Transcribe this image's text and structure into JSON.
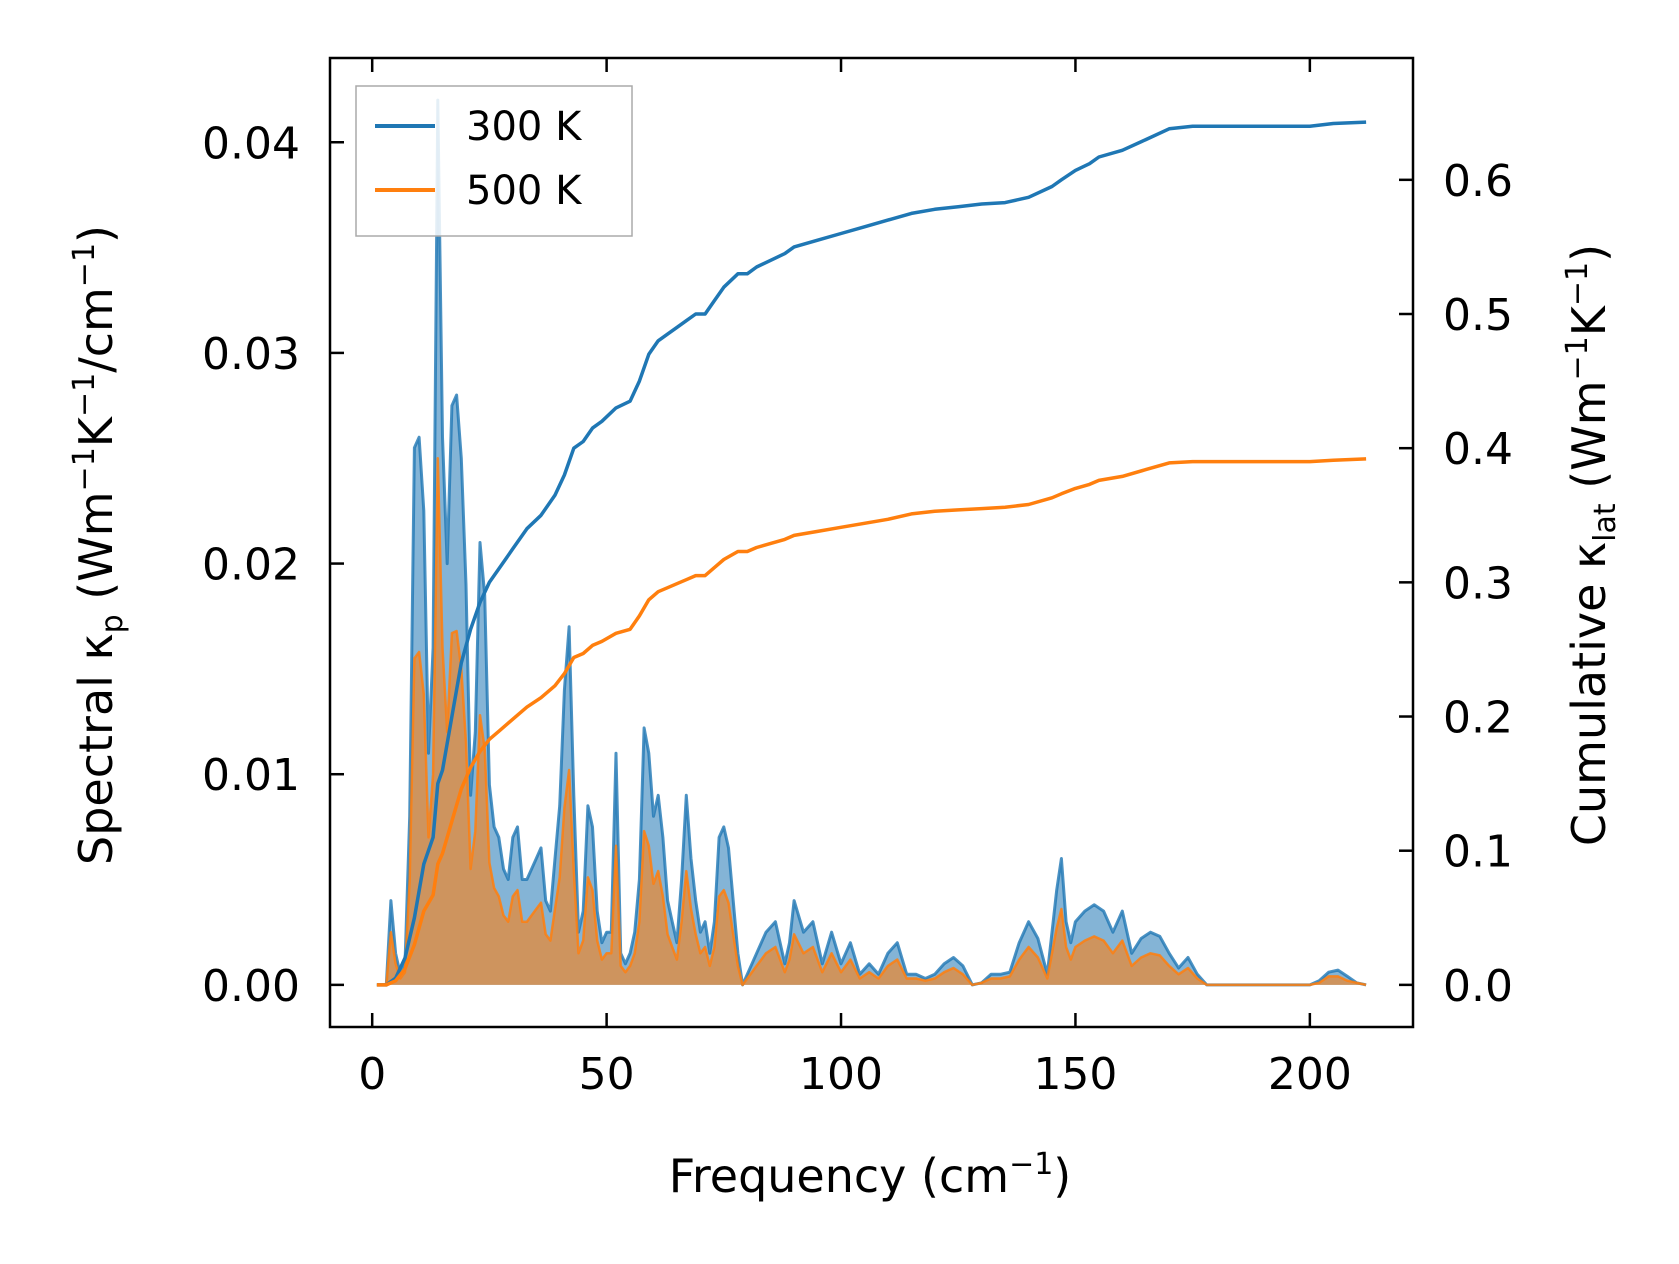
{
  "chart_data": {
    "type": "area",
    "xlabel": "Frequency (cm",
    "xlabel_sup": "−1",
    "xlabel_end": ")",
    "ylabel_left": {
      "pre": "Spectral κ",
      "sub": "p",
      "mid1": " (Wm",
      "sup1": "−1",
      "mid2": "K",
      "sup2": "−1",
      "mid3": "/cm",
      "sup3": "−1",
      "end": ")"
    },
    "ylabel_right": {
      "pre": "Cumulative κ",
      "sub": "lat",
      "mid1": " (Wm",
      "sup1": "−1",
      "mid2": "K",
      "sup2": "−1",
      "end": ")"
    },
    "xlim": [
      -9,
      222
    ],
    "ylim_left": [
      -0.002,
      0.044
    ],
    "ylim_right": [
      -0.0314,
      0.6908
    ],
    "xticks": [
      0,
      50,
      100,
      150,
      200
    ],
    "xtick_labels": [
      "0",
      "50",
      "100",
      "150",
      "200"
    ],
    "yticks_left": [
      0,
      0.01,
      0.02,
      0.03,
      0.04
    ],
    "ytick_labels_left": [
      "0.00",
      "0.01",
      "0.02",
      "0.03",
      "0.04"
    ],
    "yticks_right": [
      0,
      0.1,
      0.2,
      0.3,
      0.4,
      0.5,
      0.6
    ],
    "ytick_labels_right": [
      "0.0",
      "0.1",
      "0.2",
      "0.3",
      "0.4",
      "0.5",
      "0.6"
    ],
    "legend": {
      "position": "upper-left",
      "entries": [
        "300 K",
        "500 K"
      ]
    },
    "series_colors": {
      "300 K": "#1f77b4",
      "500 K": "#ff7f0e"
    },
    "spectral_300K": {
      "x": [
        1,
        3,
        4,
        5,
        6,
        7,
        8,
        9,
        10,
        11,
        12,
        13,
        14,
        15,
        16,
        17,
        18,
        19,
        20,
        21,
        22,
        23,
        24,
        25,
        26,
        27,
        28,
        29,
        30,
        31,
        32,
        33,
        34,
        35,
        36,
        37,
        38,
        39,
        40,
        41,
        42,
        43,
        44,
        45,
        46,
        47,
        48,
        49,
        50,
        51,
        52,
        53,
        54,
        55,
        56,
        57,
        58,
        59,
        60,
        61,
        62,
        63,
        64,
        65,
        66,
        67,
        68,
        69,
        70,
        71,
        72,
        73,
        74,
        75,
        76,
        77,
        78,
        79,
        80,
        82,
        84,
        86,
        88,
        89,
        90,
        92,
        94,
        96,
        98,
        100,
        102,
        104,
        106,
        108,
        110,
        112,
        114,
        116,
        118,
        120,
        122,
        124,
        126,
        128,
        130,
        132,
        134,
        136,
        138,
        140,
        142,
        144,
        146,
        147,
        148,
        149,
        150,
        152,
        154,
        156,
        158,
        160,
        162,
        164,
        166,
        168,
        170,
        172,
        174,
        176,
        178,
        180,
        190,
        200,
        202,
        204,
        206,
        208,
        210,
        212
      ],
      "y": [
        0,
        0,
        0.004,
        0.0015,
        0.0005,
        0.001,
        0.008,
        0.0255,
        0.026,
        0.0225,
        0.011,
        0.016,
        0.042,
        0.026,
        0.02,
        0.0275,
        0.028,
        0.025,
        0.019,
        0.009,
        0.012,
        0.021,
        0.0185,
        0.0095,
        0.0075,
        0.007,
        0.0055,
        0.005,
        0.007,
        0.0075,
        0.005,
        0.005,
        0.0055,
        0.006,
        0.0065,
        0.004,
        0.0035,
        0.006,
        0.0085,
        0.014,
        0.017,
        0.009,
        0.0025,
        0.0035,
        0.0085,
        0.0075,
        0.0035,
        0.002,
        0.0025,
        0.0025,
        0.011,
        0.0015,
        0.001,
        0.0015,
        0.0025,
        0.005,
        0.0122,
        0.011,
        0.008,
        0.009,
        0.007,
        0.004,
        0.003,
        0.002,
        0.005,
        0.009,
        0.006,
        0.004,
        0.0025,
        0.003,
        0.0015,
        0.003,
        0.007,
        0.0075,
        0.0065,
        0.004,
        0.0015,
        0,
        0.0005,
        0.0015,
        0.0025,
        0.003,
        0.001,
        0.002,
        0.004,
        0.0025,
        0.003,
        0.001,
        0.0025,
        0.001,
        0.002,
        0.0005,
        0.001,
        0.0005,
        0.0015,
        0.002,
        0.0005,
        0.0005,
        0.0003,
        0.0005,
        0.001,
        0.0013,
        0.0009,
        0,
        0.0001,
        0.0005,
        0.0005,
        0.0006,
        0.002,
        0.003,
        0.0022,
        0.0005,
        0.0045,
        0.006,
        0.003,
        0.002,
        0.003,
        0.0035,
        0.0038,
        0.0035,
        0.0025,
        0.0035,
        0.0015,
        0.0022,
        0.0025,
        0.0023,
        0.0015,
        0.0008,
        0.0013,
        0.0005,
        0,
        0,
        0,
        0,
        0.0002,
        0.0006,
        0.0007,
        0.0004,
        0.0001,
        0
      ]
    },
    "spectral_500K": {
      "x": [
        1,
        3,
        4,
        5,
        6,
        7,
        8,
        9,
        10,
        11,
        12,
        13,
        14,
        15,
        16,
        17,
        18,
        19,
        20,
        21,
        22,
        23,
        24,
        25,
        26,
        27,
        28,
        29,
        30,
        31,
        32,
        33,
        34,
        35,
        36,
        37,
        38,
        39,
        40,
        41,
        42,
        43,
        44,
        45,
        46,
        47,
        48,
        49,
        50,
        51,
        52,
        53,
        54,
        55,
        56,
        57,
        58,
        59,
        60,
        61,
        62,
        63,
        64,
        65,
        66,
        67,
        68,
        69,
        70,
        71,
        72,
        73,
        74,
        75,
        76,
        77,
        78,
        79,
        80,
        82,
        84,
        86,
        88,
        89,
        90,
        92,
        94,
        96,
        98,
        100,
        102,
        104,
        106,
        108,
        110,
        112,
        114,
        116,
        118,
        120,
        122,
        124,
        126,
        128,
        130,
        132,
        134,
        136,
        138,
        140,
        142,
        144,
        146,
        147,
        148,
        149,
        150,
        152,
        154,
        156,
        158,
        160,
        162,
        164,
        166,
        168,
        170,
        172,
        174,
        176,
        178,
        180,
        190,
        200,
        202,
        204,
        206,
        208,
        210,
        212
      ],
      "y": [
        0,
        0,
        0.0025,
        0.001,
        0.0003,
        0.0006,
        0.005,
        0.0155,
        0.0158,
        0.0138,
        0.007,
        0.01,
        0.025,
        0.016,
        0.012,
        0.0167,
        0.0168,
        0.015,
        0.0115,
        0.0055,
        0.0073,
        0.0128,
        0.0112,
        0.0058,
        0.0046,
        0.0042,
        0.0033,
        0.003,
        0.0042,
        0.0045,
        0.003,
        0.003,
        0.0033,
        0.0036,
        0.0039,
        0.0024,
        0.0021,
        0.0036,
        0.0051,
        0.0084,
        0.0102,
        0.0054,
        0.0015,
        0.0021,
        0.0051,
        0.0045,
        0.0021,
        0.0012,
        0.0015,
        0.0015,
        0.0066,
        0.0009,
        0.0006,
        0.0009,
        0.0015,
        0.003,
        0.0073,
        0.0066,
        0.0048,
        0.0054,
        0.0042,
        0.0024,
        0.0018,
        0.0012,
        0.003,
        0.0054,
        0.0036,
        0.0024,
        0.0015,
        0.0018,
        0.0009,
        0.0018,
        0.0042,
        0.0045,
        0.0039,
        0.0024,
        0.0009,
        0,
        0.0003,
        0.0009,
        0.0015,
        0.0018,
        0.0006,
        0.0012,
        0.0024,
        0.0015,
        0.0018,
        0.0006,
        0.0015,
        0.0006,
        0.0012,
        0.0003,
        0.0006,
        0.0003,
        0.0009,
        0.0012,
        0.0003,
        0.0003,
        0.0002,
        0.0003,
        0.0006,
        0.0008,
        0.0005,
        0,
        0.0001,
        0.0003,
        0.0003,
        0.0004,
        0.0012,
        0.0018,
        0.0013,
        0.0003,
        0.0027,
        0.0036,
        0.0018,
        0.0012,
        0.0018,
        0.0021,
        0.0023,
        0.0021,
        0.0015,
        0.0021,
        0.0009,
        0.0013,
        0.0015,
        0.0014,
        0.0009,
        0.0005,
        0.0008,
        0.0003,
        0,
        0,
        0,
        0,
        0.0001,
        0.0004,
        0.0004,
        0.0002,
        0.0001,
        0
      ]
    },
    "cumulative_300K": {
      "x": [
        1,
        3,
        5,
        7,
        9,
        11,
        13,
        14,
        15,
        17,
        19,
        21,
        23,
        25,
        27,
        30,
        33,
        36,
        39,
        41,
        43,
        45,
        47,
        49,
        52,
        55,
        57,
        59,
        61,
        63,
        65,
        67,
        69,
        71,
        73,
        75,
        78,
        80,
        82,
        85,
        88,
        90,
        95,
        100,
        105,
        110,
        115,
        120,
        125,
        130,
        135,
        140,
        145,
        147,
        150,
        153,
        155,
        160,
        165,
        170,
        175,
        180,
        190,
        200,
        205,
        212
      ],
      "y": [
        0,
        0,
        0.005,
        0.02,
        0.05,
        0.09,
        0.11,
        0.15,
        0.16,
        0.2,
        0.24,
        0.265,
        0.285,
        0.3,
        0.31,
        0.325,
        0.34,
        0.35,
        0.365,
        0.38,
        0.4,
        0.405,
        0.415,
        0.42,
        0.43,
        0.435,
        0.45,
        0.47,
        0.48,
        0.485,
        0.49,
        0.495,
        0.5,
        0.5,
        0.51,
        0.52,
        0.53,
        0.53,
        0.535,
        0.54,
        0.545,
        0.55,
        0.555,
        0.56,
        0.565,
        0.57,
        0.575,
        0.578,
        0.58,
        0.582,
        0.583,
        0.587,
        0.595,
        0.6,
        0.607,
        0.612,
        0.617,
        0.622,
        0.63,
        0.638,
        0.64,
        0.64,
        0.64,
        0.64,
        0.642,
        0.643
      ]
    },
    "cumulative_500K": {
      "x": [
        1,
        3,
        5,
        7,
        9,
        11,
        13,
        14,
        15,
        17,
        19,
        21,
        23,
        25,
        27,
        30,
        33,
        36,
        39,
        41,
        43,
        45,
        47,
        49,
        52,
        55,
        57,
        59,
        61,
        63,
        65,
        67,
        69,
        71,
        73,
        75,
        78,
        80,
        82,
        85,
        88,
        90,
        95,
        100,
        105,
        110,
        115,
        120,
        125,
        130,
        135,
        140,
        145,
        147,
        150,
        153,
        155,
        160,
        165,
        170,
        175,
        180,
        190,
        200,
        205,
        212
      ],
      "y": [
        0,
        0,
        0.003,
        0.012,
        0.03,
        0.055,
        0.067,
        0.09,
        0.098,
        0.122,
        0.146,
        0.162,
        0.174,
        0.183,
        0.189,
        0.198,
        0.207,
        0.214,
        0.223,
        0.232,
        0.244,
        0.247,
        0.253,
        0.256,
        0.262,
        0.265,
        0.275,
        0.287,
        0.293,
        0.296,
        0.299,
        0.302,
        0.305,
        0.305,
        0.311,
        0.317,
        0.323,
        0.323,
        0.326,
        0.329,
        0.332,
        0.335,
        0.338,
        0.341,
        0.344,
        0.347,
        0.351,
        0.353,
        0.354,
        0.355,
        0.356,
        0.358,
        0.363,
        0.366,
        0.37,
        0.373,
        0.376,
        0.379,
        0.384,
        0.389,
        0.39,
        0.39,
        0.39,
        0.39,
        0.391,
        0.392
      ]
    }
  }
}
